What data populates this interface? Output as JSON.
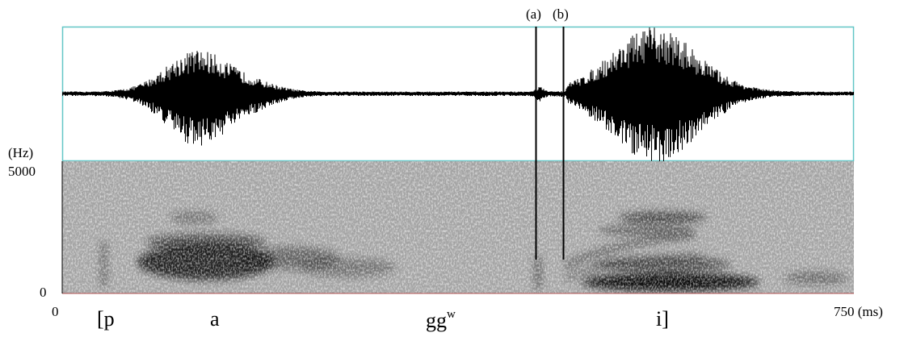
{
  "markers": [
    {
      "label": "(a)",
      "time_ms": 490
    },
    {
      "label": "(b)",
      "time_ms": 517
    }
  ],
  "y_axis": {
    "unit": "(Hz)",
    "top": "5000",
    "bottom": "0"
  },
  "x_axis": {
    "start": "0",
    "end": "750 (ms)"
  },
  "segments": [
    {
      "text": "[p"
    },
    {
      "text": "a"
    },
    {
      "text": "gg",
      "sup": "w"
    },
    {
      "text": "i]"
    }
  ],
  "colors": {
    "panel_border": "#62c6c6",
    "spectrogram_bg": "#9b9b9b",
    "trace": "#000000"
  }
}
